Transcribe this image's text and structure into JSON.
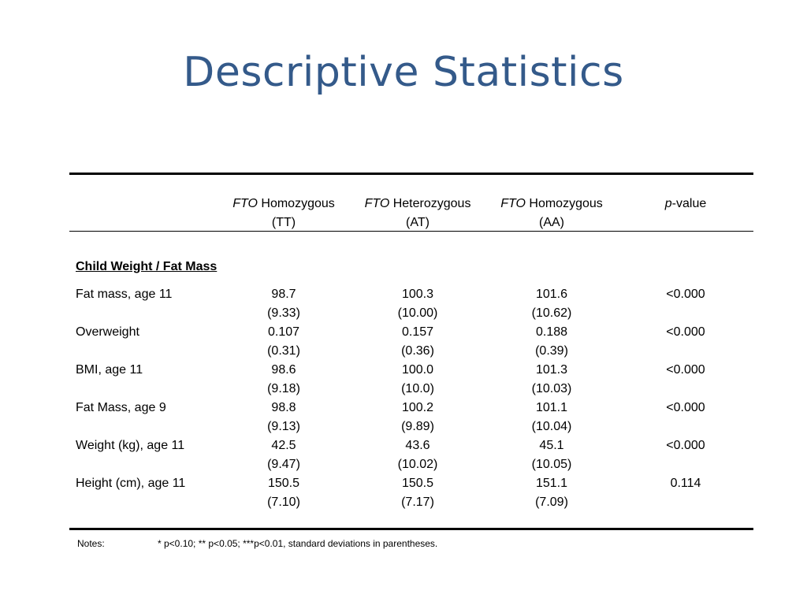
{
  "title": "Descriptive Statistics",
  "header": {
    "col1": {
      "gene": "FTO",
      "line1": "Homozygous",
      "line2": "(TT)"
    },
    "col2": {
      "gene": "FTO",
      "line1": "Heterozygous",
      "line2": "(AT)"
    },
    "col3": {
      "gene": "FTO",
      "line1": "Homozygous",
      "line2": "(AA)"
    },
    "col4": {
      "italic": "p",
      "rest": "-value"
    }
  },
  "section_title": "Child Weight / Fat Mass",
  "rows": [
    {
      "label": "Fat mass, age 11",
      "tt": "98.7",
      "tt_sd": "(9.33)",
      "at": "100.3",
      "at_sd": "(10.00)",
      "aa": "101.6",
      "aa_sd": "(10.62)",
      "p": "<0.000"
    },
    {
      "label": "Overweight",
      "tt": "0.107",
      "tt_sd": "(0.31)",
      "at": "0.157",
      "at_sd": "(0.36)",
      "aa": "0.188",
      "aa_sd": "(0.39)",
      "p": "<0.000"
    },
    {
      "label": "BMI, age 11",
      "tt": "98.6",
      "tt_sd": "(9.18)",
      "at": "100.0",
      "at_sd": "(10.0)",
      "aa": "101.3",
      "aa_sd": "(10.03)",
      "p": "<0.000"
    },
    {
      "label": "Fat Mass, age 9",
      "tt": "98.8",
      "tt_sd": "(9.13)",
      "at": "100.2",
      "at_sd": "(9.89)",
      "aa": "101.1",
      "aa_sd": "(10.04)",
      "p": "<0.000"
    },
    {
      "label": "Weight (kg), age 11",
      "tt": "42.5",
      "tt_sd": "(9.47)",
      "at": "43.6",
      "at_sd": "(10.02)",
      "aa": "45.1",
      "aa_sd": "(10.05)",
      "p": "<0.000"
    },
    {
      "label": "Height (cm), age 11",
      "tt": "150.5",
      "tt_sd": "(7.10)",
      "at": "150.5",
      "at_sd": "(7.17)",
      "aa": "151.1",
      "aa_sd": "(7.09)",
      "p": "0.114"
    }
  ],
  "notes": {
    "label": "Notes:",
    "text": "* p<0.10; ** p<0.05; ***p<0.01, standard deviations in parentheses."
  }
}
